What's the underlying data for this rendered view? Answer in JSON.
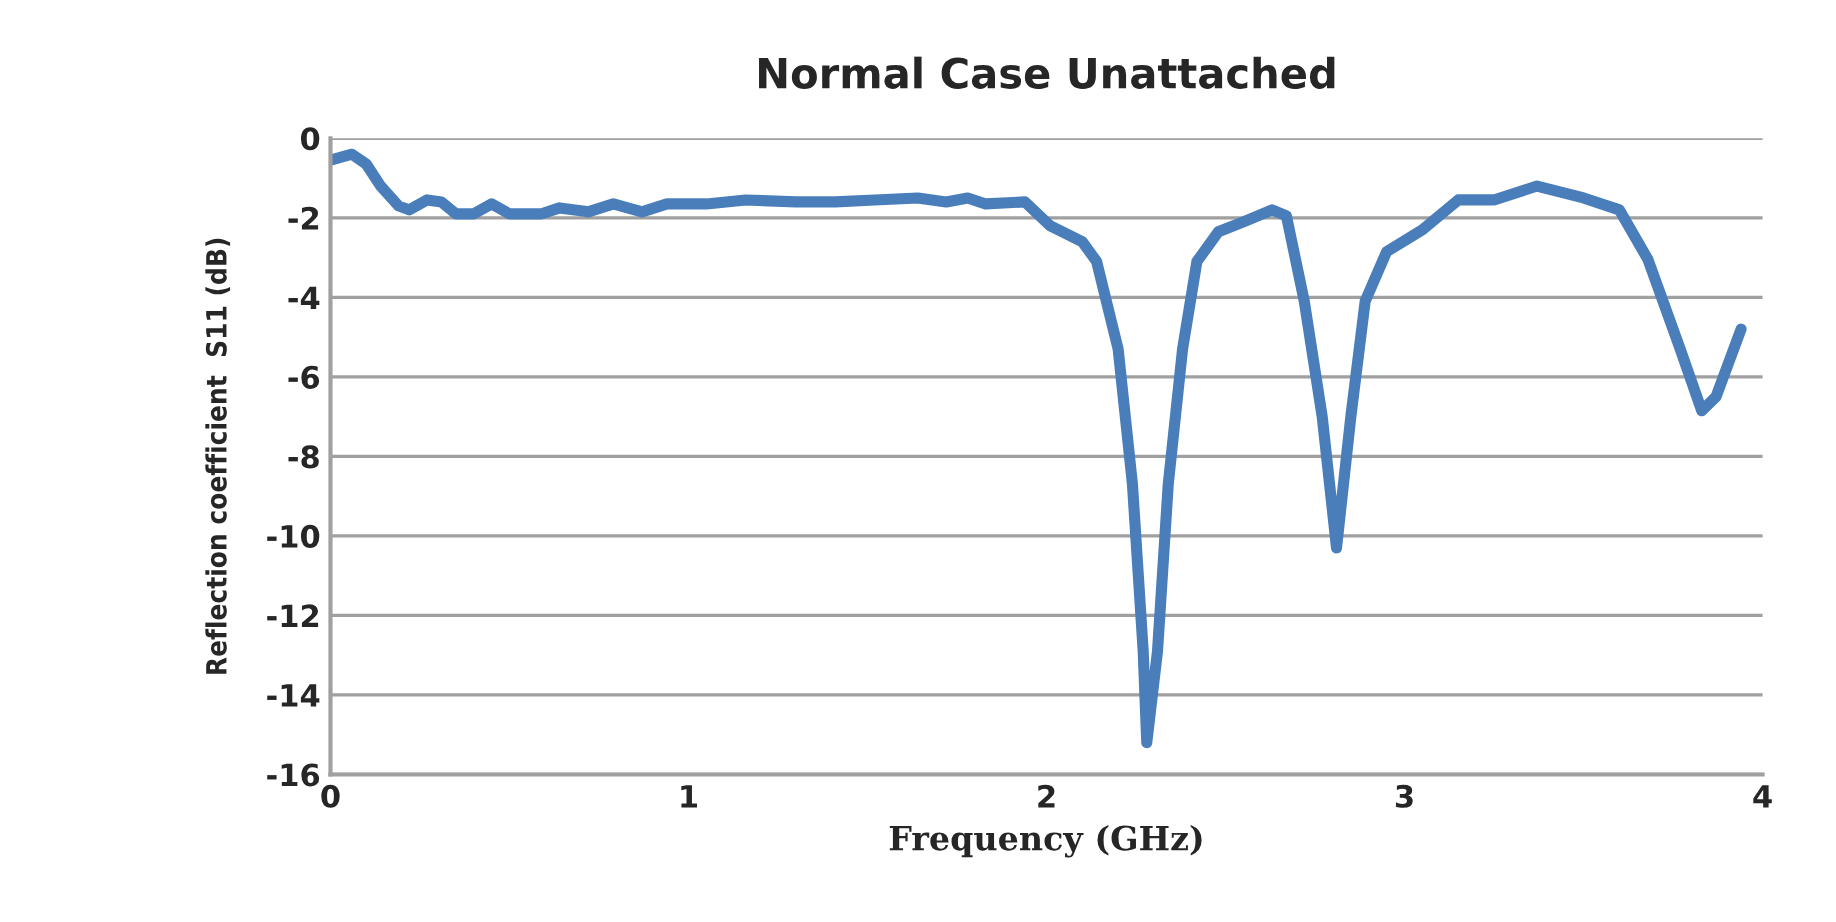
{
  "chart_data": {
    "type": "line",
    "title": "Normal Case Unattached",
    "xlabel": "Frequency (GHz)",
    "ylabel": "Reflection coefficient  S11 (dB)",
    "x": [
      0,
      0.06,
      0.1,
      0.14,
      0.19,
      0.22,
      0.27,
      0.31,
      0.35,
      0.4,
      0.45,
      0.5,
      0.59,
      0.64,
      0.72,
      0.79,
      0.87,
      0.94,
      1.05,
      1.16,
      1.3,
      1.41,
      1.52,
      1.64,
      1.72,
      1.78,
      1.83,
      1.94,
      2.01,
      2.1,
      2.14,
      2.2,
      2.24,
      2.27,
      2.28,
      2.31,
      2.34,
      2.38,
      2.42,
      2.48,
      2.55,
      2.63,
      2.67,
      2.72,
      2.77,
      2.81,
      2.85,
      2.89,
      2.95,
      3.05,
      3.15,
      3.25,
      3.37,
      3.5,
      3.6,
      3.68,
      3.77,
      3.83,
      3.87,
      3.94
    ],
    "series": [
      {
        "color": "#4a7ebb",
        "values": [
          -0.55,
          -0.4,
          -0.65,
          -1.2,
          -1.7,
          -1.8,
          -1.55,
          -1.6,
          -1.9,
          -1.9,
          -1.65,
          -1.9,
          -1.9,
          -1.75,
          -1.85,
          -1.65,
          -1.85,
          -1.65,
          -1.65,
          -1.55,
          -1.6,
          -1.6,
          -1.55,
          -1.5,
          -1.6,
          -1.5,
          -1.65,
          -1.6,
          -2.2,
          -2.6,
          -3.1,
          -5.3,
          -8.7,
          -12.9,
          -15.2,
          -12.9,
          -8.7,
          -5.3,
          -3.1,
          -2.35,
          -2.1,
          -1.8,
          -1.95,
          -4.1,
          -7.0,
          -10.3,
          -7.0,
          -4.1,
          -2.85,
          -2.3,
          -1.55,
          -1.55,
          -1.2,
          -1.5,
          -1.8,
          -3.05,
          -5.3,
          -6.85,
          -6.5,
          -4.8
        ]
      }
    ],
    "xlim": [
      0,
      4
    ],
    "xticks": [
      0,
      1,
      2,
      3,
      4
    ],
    "ylim": [
      -16,
      0
    ],
    "yticks": [
      -16,
      -14,
      -12,
      -10,
      -8,
      -6,
      -4,
      -2,
      0
    ],
    "grid": "y",
    "marker": "none",
    "line_style": "solid"
  }
}
